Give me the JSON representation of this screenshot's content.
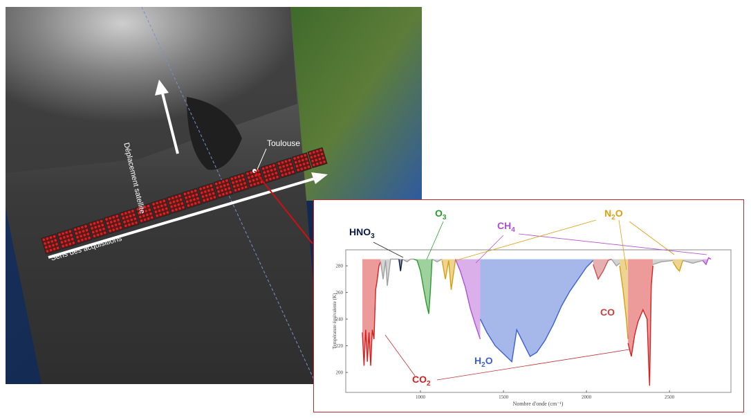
{
  "satellite": {
    "toulouse_label": "Toulouse",
    "satellite_motion_label": "Déplacement satellite",
    "acquisition_direction_label": "Sens des acquisitions"
  },
  "colors": {
    "inset_border": "#c0282d",
    "CO2": "#d42020",
    "CO": "#c85050",
    "O3": "#2a9a2a",
    "N2O": "#d8a010",
    "CH4": "#b050d0",
    "H2O": "#3a60d0",
    "HNO3": "#0a1a40",
    "other": "#a0a0a0"
  },
  "chart_data": {
    "type": "line",
    "xlabel": "Nombre d'onde (cm⁻¹)",
    "ylabel": "Température équivalente (K)",
    "xlim": [
      550,
      2870
    ],
    "ylim": [
      185,
      292
    ],
    "xticks": [
      1000,
      1500,
      2000,
      2500
    ],
    "yticks": [
      200,
      220,
      240,
      260,
      280
    ],
    "grid": false,
    "segments": [
      {
        "gas": "CO2",
        "points": [
          [
            650,
            230
          ],
          [
            660,
            205
          ],
          [
            670,
            232
          ],
          [
            680,
            208
          ],
          [
            690,
            230
          ],
          [
            700,
            205
          ],
          [
            710,
            232
          ],
          [
            720,
            225
          ],
          [
            730,
            262
          ],
          [
            740,
            270
          ],
          [
            750,
            280
          ],
          [
            760,
            283
          ]
        ]
      },
      {
        "gas": "other",
        "points": [
          [
            760,
            283
          ],
          [
            775,
            270
          ],
          [
            790,
            284
          ],
          [
            800,
            265
          ],
          [
            820,
            285
          ],
          [
            870,
            285
          ]
        ]
      },
      {
        "gas": "HNO3",
        "points": [
          [
            870,
            285
          ],
          [
            880,
            276
          ],
          [
            890,
            285
          ]
        ]
      },
      {
        "gas": "other",
        "points": [
          [
            890,
            285
          ],
          [
            920,
            283
          ],
          [
            940,
            285
          ],
          [
            960,
            285
          ]
        ]
      },
      {
        "gas": "O3",
        "points": [
          [
            960,
            285
          ],
          [
            980,
            284
          ],
          [
            1000,
            276
          ],
          [
            1020,
            262
          ],
          [
            1035,
            252
          ],
          [
            1050,
            244
          ],
          [
            1060,
            262
          ],
          [
            1070,
            285
          ]
        ]
      },
      {
        "gas": "other",
        "points": [
          [
            1070,
            285
          ],
          [
            1100,
            283
          ],
          [
            1130,
            285
          ]
        ]
      },
      {
        "gas": "N2O",
        "points": [
          [
            1130,
            284
          ],
          [
            1150,
            270
          ],
          [
            1170,
            284
          ],
          [
            1185,
            262
          ],
          [
            1210,
            284
          ]
        ]
      },
      {
        "gas": "CH4",
        "points": [
          [
            1210,
            285
          ],
          [
            1240,
            276
          ],
          [
            1270,
            264
          ],
          [
            1300,
            248
          ],
          [
            1330,
            236
          ],
          [
            1360,
            225
          ]
        ]
      },
      {
        "gas": "H2O",
        "points": [
          [
            1360,
            240
          ],
          [
            1400,
            230
          ],
          [
            1450,
            220
          ],
          [
            1500,
            214
          ],
          [
            1550,
            208
          ],
          [
            1580,
            232
          ],
          [
            1620,
            222
          ],
          [
            1660,
            212
          ],
          [
            1700,
            215
          ],
          [
            1750,
            224
          ],
          [
            1800,
            236
          ],
          [
            1850,
            250
          ],
          [
            1900,
            261
          ],
          [
            1950,
            270
          ],
          [
            2000,
            279
          ],
          [
            2040,
            284
          ]
        ]
      },
      {
        "gas": "CO",
        "points": [
          [
            2040,
            281
          ],
          [
            2070,
            270
          ],
          [
            2100,
            276
          ],
          [
            2130,
            284
          ],
          [
            2150,
            285
          ]
        ]
      },
      {
        "gas": "other",
        "points": [
          [
            2150,
            285
          ],
          [
            2180,
            280
          ],
          [
            2200,
            282
          ]
        ]
      },
      {
        "gas": "N2O",
        "points": [
          [
            2200,
            280
          ],
          [
            2220,
            262
          ],
          [
            2240,
            240
          ],
          [
            2250,
            225
          ]
        ]
      },
      {
        "gas": "CO2",
        "points": [
          [
            2250,
            222
          ],
          [
            2270,
            212
          ],
          [
            2290,
            228
          ],
          [
            2310,
            238
          ],
          [
            2340,
            247
          ],
          [
            2365,
            240
          ],
          [
            2375,
            205
          ],
          [
            2380,
            190
          ],
          [
            2390,
            265
          ],
          [
            2400,
            280
          ]
        ]
      },
      {
        "gas": "other",
        "points": [
          [
            2400,
            281
          ],
          [
            2450,
            283
          ],
          [
            2520,
            284
          ]
        ]
      },
      {
        "gas": "N2O",
        "points": [
          [
            2520,
            283
          ],
          [
            2545,
            278
          ],
          [
            2560,
            276
          ],
          [
            2580,
            284
          ]
        ]
      },
      {
        "gas": "other",
        "points": [
          [
            2580,
            284
          ],
          [
            2640,
            282
          ],
          [
            2700,
            284
          ]
        ]
      },
      {
        "gas": "CH4",
        "points": [
          [
            2700,
            284
          ],
          [
            2720,
            281
          ],
          [
            2735,
            286
          ],
          [
            2750,
            285
          ]
        ]
      }
    ],
    "annotations": {
      "HNO3": {
        "text": "HNO",
        "sub": "3"
      },
      "O3": {
        "text": "O",
        "sub": "3"
      },
      "CH4": {
        "text": "CH",
        "sub": "4"
      },
      "N2O": {
        "text": "N",
        "sub": "2",
        "after": "O"
      },
      "CO": {
        "text": "CO"
      },
      "H2O": {
        "text": "H",
        "sub": "2",
        "after": "O"
      },
      "CO2": {
        "text": "CO",
        "sub": "2"
      }
    }
  }
}
